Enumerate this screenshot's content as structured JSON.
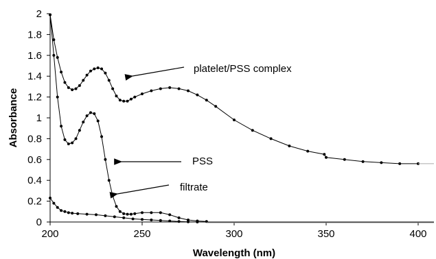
{
  "chart_data": {
    "type": "scatter",
    "xlabel": "Wavelength (nm)",
    "ylabel": "Absorbance",
    "xlim": [
      200,
      400
    ],
    "ylim": [
      0,
      2
    ],
    "x_ticks": [
      "200",
      "250",
      "300",
      "350",
      "400"
    ],
    "y_ticks": [
      "0",
      "0.2",
      "0.4",
      "0.6",
      "0.8",
      "1",
      "1.2",
      "1.4",
      "1.6",
      "1.8",
      "2"
    ],
    "grid": false,
    "legend": "none",
    "marker_color": "#000000",
    "series": [
      {
        "name": "platelet/PSS complex",
        "x": [
          200,
          202,
          204,
          206,
          208,
          210,
          212,
          214,
          216,
          218,
          220,
          222,
          224,
          226,
          228,
          230,
          232,
          234,
          236,
          238,
          240,
          242,
          244,
          246,
          250,
          255,
          260,
          265,
          270,
          275,
          280,
          285,
          290,
          300,
          310,
          320,
          330,
          340,
          349,
          350,
          360,
          370,
          380,
          390,
          400
        ],
        "y": [
          1.99,
          1.75,
          1.58,
          1.44,
          1.34,
          1.29,
          1.27,
          1.28,
          1.31,
          1.36,
          1.41,
          1.45,
          1.47,
          1.48,
          1.47,
          1.43,
          1.36,
          1.28,
          1.21,
          1.17,
          1.16,
          1.16,
          1.18,
          1.2,
          1.23,
          1.26,
          1.28,
          1.29,
          1.28,
          1.26,
          1.22,
          1.17,
          1.11,
          0.98,
          0.88,
          0.8,
          0.73,
          0.68,
          0.65,
          0.62,
          0.6,
          0.58,
          0.57,
          0.56,
          0.56
        ]
      },
      {
        "name": "PSS",
        "x": [
          200,
          202,
          204,
          206,
          208,
          210,
          212,
          214,
          216,
          218,
          220,
          222,
          224,
          226,
          228,
          230,
          232,
          234,
          236,
          238,
          240,
          242,
          244,
          246,
          250,
          255,
          260,
          265,
          270,
          275,
          280,
          285
        ],
        "y": [
          1.99,
          1.6,
          1.2,
          0.92,
          0.79,
          0.75,
          0.76,
          0.8,
          0.88,
          0.96,
          1.02,
          1.05,
          1.04,
          0.97,
          0.82,
          0.6,
          0.4,
          0.25,
          0.15,
          0.1,
          0.08,
          0.075,
          0.075,
          0.08,
          0.09,
          0.09,
          0.09,
          0.07,
          0.04,
          0.02,
          0.01,
          0.005
        ]
      },
      {
        "name": "filtrate",
        "x": [
          200,
          202,
          204,
          206,
          208,
          210,
          212,
          215,
          220,
          225,
          230,
          235,
          240,
          245,
          250,
          255,
          260,
          265,
          270,
          275,
          280
        ],
        "y": [
          0.23,
          0.18,
          0.14,
          0.11,
          0.1,
          0.09,
          0.085,
          0.08,
          0.075,
          0.07,
          0.06,
          0.05,
          0.04,
          0.03,
          0.025,
          0.02,
          0.015,
          0.01,
          0.005,
          0.002,
          0.0
        ]
      }
    ],
    "annotations": [
      {
        "text": "platelet/PSS complex"
      },
      {
        "text": "PSS"
      },
      {
        "text": "filtrate"
      }
    ]
  }
}
